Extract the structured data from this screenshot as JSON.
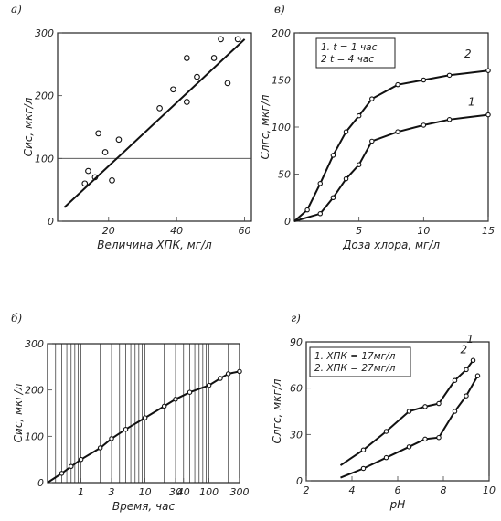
{
  "chart_data": [
    {
      "panel": "а)",
      "type": "scatter",
      "xlabel": "Величина ХПК, мг/л",
      "ylabel": "Cис, мкг/л",
      "xlim": [
        5,
        62
      ],
      "ylim": [
        0,
        300
      ],
      "xticks": [
        "20",
        "40",
        "60"
      ],
      "yticks": [
        "0",
        "100",
        "200",
        "300"
      ],
      "ref_line_y": 100,
      "series": [
        {
          "kind": "points",
          "points": [
            [
              13,
              60
            ],
            [
              14,
              80
            ],
            [
              16,
              70
            ],
            [
              17,
              140
            ],
            [
              19,
              110
            ],
            [
              21,
              65
            ],
            [
              23,
              130
            ],
            [
              35,
              180
            ],
            [
              39,
              210
            ],
            [
              43,
              190
            ],
            [
              43,
              260
            ],
            [
              46,
              230
            ],
            [
              51,
              260
            ],
            [
              53,
              290
            ],
            [
              55,
              220
            ],
            [
              58,
              290
            ]
          ]
        },
        {
          "kind": "fit",
          "points": [
            [
              7,
              22
            ],
            [
              60,
              290
            ]
          ]
        }
      ]
    },
    {
      "panel": "в)",
      "type": "line",
      "xlabel": "Доза хлора, мг/л",
      "ylabel": "Cлгс, мкг/л",
      "xlim": [
        0,
        15
      ],
      "ylim": [
        0,
        200
      ],
      "xticks": [
        "5",
        "10",
        "15"
      ],
      "yticks": [
        "0",
        "50",
        "100",
        "150",
        "200"
      ],
      "legend": [
        "1. t = 1 час",
        "2  t = 4 час"
      ],
      "series": [
        {
          "name": "1",
          "points": [
            [
              0,
              0
            ],
            [
              2,
              8
            ],
            [
              3,
              25
            ],
            [
              4,
              45
            ],
            [
              5,
              60
            ],
            [
              6,
              85
            ],
            [
              8,
              95
            ],
            [
              10,
              102
            ],
            [
              12,
              108
            ],
            [
              15,
              113
            ]
          ]
        },
        {
          "name": "2",
          "points": [
            [
              0,
              0
            ],
            [
              1,
              12
            ],
            [
              2,
              40
            ],
            [
              3,
              70
            ],
            [
              4,
              95
            ],
            [
              5,
              112
            ],
            [
              6,
              130
            ],
            [
              8,
              145
            ],
            [
              10,
              150
            ],
            [
              12,
              155
            ],
            [
              15,
              160
            ]
          ]
        }
      ]
    },
    {
      "panel": "б)",
      "type": "line",
      "xlabel": "Время, час",
      "ylabel": "Cис, мкг/л",
      "xscale": "log",
      "xlim": [
        0.3,
        300
      ],
      "ylim": [
        0,
        300
      ],
      "xticks": [
        "1",
        "3",
        "10",
        "30",
        "40",
        "100",
        "300"
      ],
      "yticks": [
        "0",
        "100",
        "200",
        "300"
      ],
      "series": [
        {
          "points": [
            [
              0.3,
              0
            ],
            [
              0.5,
              20
            ],
            [
              0.7,
              35
            ],
            [
              1,
              50
            ],
            [
              2,
              75
            ],
            [
              3,
              95
            ],
            [
              5,
              115
            ],
            [
              10,
              140
            ],
            [
              20,
              165
            ],
            [
              30,
              180
            ],
            [
              50,
              195
            ],
            [
              100,
              210
            ],
            [
              150,
              225
            ],
            [
              200,
              235
            ],
            [
              300,
              240
            ]
          ]
        }
      ]
    },
    {
      "panel": "г)",
      "type": "line",
      "xlabel": "pH",
      "ylabel": "Cлгс, мкг/л",
      "xlim": [
        2,
        10
      ],
      "ylim": [
        0,
        90
      ],
      "xticks": [
        "2",
        "4",
        "6",
        "8",
        "10"
      ],
      "yticks": [
        "0",
        "30",
        "60",
        "90"
      ],
      "legend": [
        "1. ХПК = 17мг/л",
        "2. ХПК = 27мг/л"
      ],
      "series": [
        {
          "name": "1",
          "points": [
            [
              3.5,
              2
            ],
            [
              4.5,
              8
            ],
            [
              5.5,
              15
            ],
            [
              6.5,
              22
            ],
            [
              7.2,
              27
            ],
            [
              7.8,
              28
            ],
            [
              8.5,
              45
            ],
            [
              9,
              55
            ],
            [
              9.5,
              68
            ]
          ]
        },
        {
          "name": "2",
          "points": [
            [
              3.5,
              10
            ],
            [
              4.5,
              20
            ],
            [
              5.5,
              32
            ],
            [
              6.5,
              45
            ],
            [
              7.2,
              48
            ],
            [
              7.8,
              50
            ],
            [
              8.5,
              65
            ],
            [
              9,
              72
            ],
            [
              9.3,
              78
            ]
          ]
        }
      ]
    }
  ],
  "labels": {
    "panel_a": "а)",
    "panel_v": "в)",
    "panel_b": "б)",
    "panel_g": "г)",
    "curve_1": "1",
    "curve_2": "2"
  }
}
